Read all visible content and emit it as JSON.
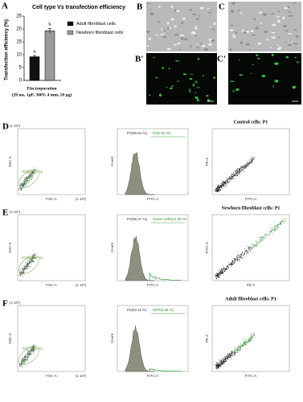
{
  "panel_labels": {
    "A": "A",
    "B": "B",
    "C": "C",
    "B_prime": "B'",
    "C_prime": "C'",
    "D": "D",
    "E": "E",
    "F": "F"
  },
  "chart_data": {
    "type": "bar",
    "title": "Cell type Vs transfection efficiency",
    "y_label": "Transfection efficiency (%)",
    "categories": [
      "Electroporation"
    ],
    "x_label": "(20 ms, 1µF, 300V, 4 mm, 10 µg)",
    "ylim": [
      0,
      25
    ],
    "yticks": [
      0,
      5,
      10,
      15,
      20,
      25
    ],
    "series": [
      {
        "name": "Adult fibroblast cells",
        "color": "#111111",
        "values": [
          9.2
        ],
        "errors": [
          0.5
        ],
        "annotation": "a"
      },
      {
        "name": "Newborn fibroblast cells",
        "color": "#9a9a9a",
        "values": [
          19.3
        ],
        "errors": [
          0.9
        ],
        "annotation": "b"
      }
    ]
  },
  "flow": [
    {
      "title": "Control cells: P1",
      "gate1": "P1(81.33 %)",
      "gate2": "P2(99.64 %)",
      "gate3": "P3(0.03 %)",
      "right_y": "PE-A",
      "right_x": "FITC-A",
      "hist_green": false
    },
    {
      "title": "Newborn fibroblast cells: P1",
      "gate1": "P1(91.68 %)",
      "gate2": "P2(95.37 %)",
      "gate3": "Green cells(12.39 %)",
      "right_y": "FITC-A",
      "right_x": "PE-A",
      "hist_green": true
    },
    {
      "title": "Adult fibroblast cells: P1",
      "gate1": "P1(74.54 %)",
      "gate2": "P2(93.11 %)",
      "gate3": "GFP(5.08 %)",
      "right_y": "PE-A",
      "right_x": "FITC-A",
      "hist_green": true
    }
  ],
  "axes": {
    "ssc": "SSC-A",
    "fsc": "FSC-A",
    "count": "Count",
    "fitc": "FITC-A",
    "scale": "(x 10⁶)"
  }
}
